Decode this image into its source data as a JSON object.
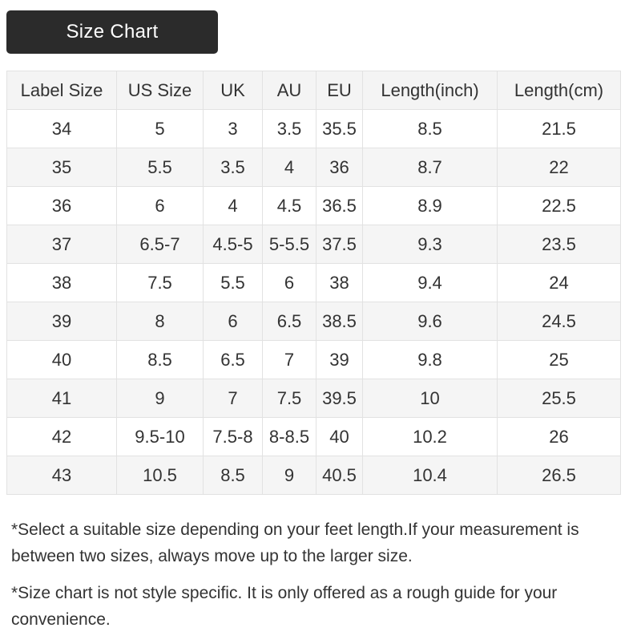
{
  "header": {
    "title": "Size Chart",
    "bg_color": "#2b2b2b",
    "text_color": "#ffffff"
  },
  "size_table": {
    "columns": [
      "Label Size",
      "US Size",
      "UK",
      "AU",
      "EU",
      "Length(inch)",
      "Length(cm)"
    ],
    "rows": [
      [
        "34",
        "5",
        "3",
        "3.5",
        "35.5",
        "8.5",
        "21.5"
      ],
      [
        "35",
        "5.5",
        "3.5",
        "4",
        "36",
        "8.7",
        "22"
      ],
      [
        "36",
        "6",
        "4",
        "4.5",
        "36.5",
        "8.9",
        "22.5"
      ],
      [
        "37",
        "6.5-7",
        "4.5-5",
        "5-5.5",
        "37.5",
        "9.3",
        "23.5"
      ],
      [
        "38",
        "7.5",
        "5.5",
        "6",
        "38",
        "9.4",
        "24"
      ],
      [
        "39",
        "8",
        "6",
        "6.5",
        "38.5",
        "9.6",
        "24.5"
      ],
      [
        "40",
        "8.5",
        "6.5",
        "7",
        "39",
        "9.8",
        "25"
      ],
      [
        "41",
        "9",
        "7",
        "7.5",
        "39.5",
        "10",
        "25.5"
      ],
      [
        "42",
        "9.5-10",
        "7.5-8",
        "8-8.5",
        "40",
        "10.2",
        "26"
      ],
      [
        "43",
        "10.5",
        "8.5",
        "9",
        "40.5",
        "10.4",
        "26.5"
      ]
    ],
    "stripe_color": "#f5f5f5",
    "header_bg": "#f4f4f4",
    "border_color": "#e2e2e2",
    "text_color": "#333333"
  },
  "notes": [
    "*Select a suitable size depending on your feet length.If your measurement is between two sizes, always move up to the larger size.",
    "*Size chart is not style specific. It is only offered as a rough guide for your convenience."
  ]
}
